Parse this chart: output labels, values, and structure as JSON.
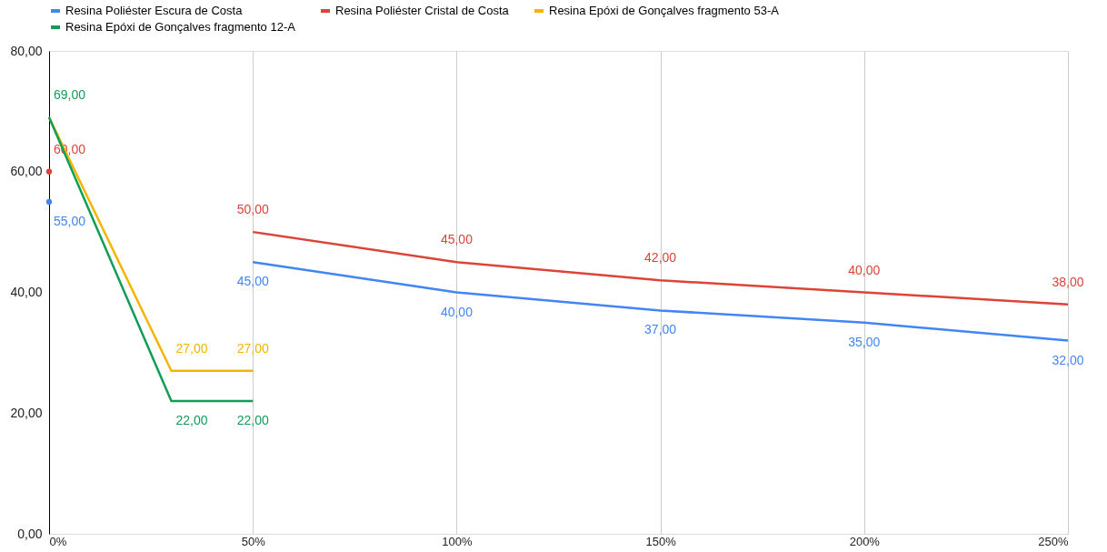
{
  "chart_data": {
    "type": "line",
    "x": [
      0,
      30,
      50,
      100,
      150,
      200,
      250
    ],
    "series": [
      {
        "name": "Resina Poliéster Escura de Costa",
        "color": "#4285f4",
        "values": [
          55,
          null,
          45,
          40,
          37,
          35,
          32
        ],
        "value_labels": [
          "55,00",
          null,
          "45,00",
          "40,00",
          "37,00",
          "35,00",
          "32,00"
        ]
      },
      {
        "name": "Resina Poliéster Cristal de Costa",
        "color": "#db4437",
        "values": [
          60,
          null,
          50,
          45,
          42,
          40,
          38
        ],
        "value_labels": [
          "60,00",
          null,
          "50,00",
          "45,00",
          "42,00",
          "40,00",
          "38,00"
        ]
      },
      {
        "name": "Resina Epóxi de Gonçalves fragmento 53-A",
        "color": "#f4b400",
        "values": [
          69,
          27,
          27,
          null,
          null,
          null,
          null
        ],
        "value_labels": [
          null,
          "27,00",
          "27,00",
          null,
          null,
          null,
          null
        ]
      },
      {
        "name": "Resina Epóxi de Gonçalves fragmento 12-A",
        "color": "#0f9d58",
        "values": [
          69,
          22,
          22,
          null,
          null,
          null,
          null
        ],
        "value_labels": [
          "69,00",
          "22,00",
          "22,00",
          null,
          null,
          null,
          null
        ]
      }
    ],
    "xlim": [
      0,
      250
    ],
    "xticks": [
      {
        "value": 0,
        "label": "0%"
      },
      {
        "value": 50,
        "label": "50%"
      },
      {
        "value": 100,
        "label": "100%"
      },
      {
        "value": 150,
        "label": "150%"
      },
      {
        "value": 200,
        "label": "200%"
      },
      {
        "value": 250,
        "label": "250%"
      }
    ],
    "ylim": [
      0,
      80
    ],
    "yticks": [
      {
        "value": 0,
        "label": "0,00"
      },
      {
        "value": 20,
        "label": "20,00"
      },
      {
        "value": 40,
        "label": "40,00"
      },
      {
        "value": 60,
        "label": "60,00"
      },
      {
        "value": 80,
        "label": "80,00"
      }
    ],
    "grid": "x",
    "legend": "top",
    "line_style": "solid",
    "marker": "none"
  }
}
